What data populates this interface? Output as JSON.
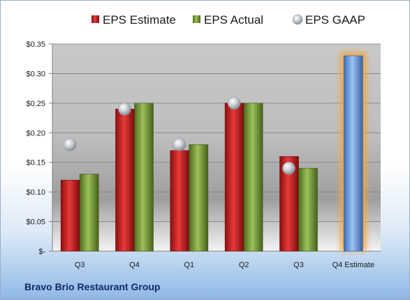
{
  "company": "Bravo Brio Restaurant Group",
  "chart_data": {
    "type": "bar",
    "categories": [
      "Q3",
      "Q4",
      "Q1",
      "Q2",
      "Q3",
      "Q4 Estimate"
    ],
    "series": [
      {
        "name": "EPS Estimate",
        "color": "#d42020",
        "values": [
          0.12,
          0.24,
          0.17,
          0.25,
          0.16,
          null
        ]
      },
      {
        "name": "EPS Actual",
        "color": "#7ea23a",
        "values": [
          0.13,
          0.25,
          0.18,
          0.25,
          0.14,
          null
        ]
      },
      {
        "name": "EPS GAAP",
        "color": "#b8bcc2",
        "marker": "sphere",
        "values": [
          0.18,
          0.24,
          0.18,
          0.25,
          0.14,
          null
        ]
      }
    ],
    "forecast": {
      "category": "Q4 Estimate",
      "value": 0.33,
      "color": "#6d9ee0",
      "glow": "#f4a640"
    },
    "ylim": [
      0,
      0.35
    ],
    "yticks": [
      0,
      0.05,
      0.1,
      0.15,
      0.2,
      0.25,
      0.3,
      0.35
    ],
    "ytick_labels": [
      "$-",
      "$0.05",
      "$0.10",
      "$0.15",
      "$0.20",
      "$0.25",
      "$0.30",
      "$0.35"
    ],
    "legend_position": "top",
    "grid": true
  }
}
